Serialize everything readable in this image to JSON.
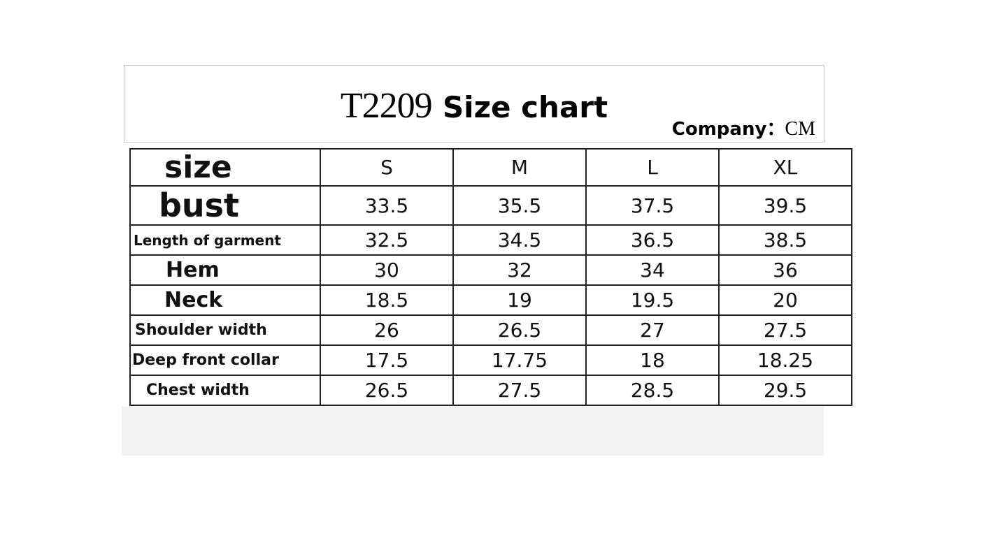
{
  "header": {
    "code": "T2209",
    "title": "Size chart",
    "company_label": "Company：",
    "unit": "CM"
  },
  "table": {
    "columns": [
      "size",
      "S",
      "M",
      "L",
      "XL"
    ],
    "rows": [
      {
        "label": "bust",
        "values": [
          "33.5",
          "35.5",
          "37.5",
          "39.5"
        ]
      },
      {
        "label": "Length of garment",
        "values": [
          "32.5",
          "34.5",
          "36.5",
          "38.5"
        ]
      },
      {
        "label": "Hem",
        "values": [
          "30",
          "32",
          "34",
          "36"
        ]
      },
      {
        "label": "Neck",
        "values": [
          "18.5",
          "19",
          "19.5",
          "20"
        ]
      },
      {
        "label": "Shoulder width",
        "values": [
          "26",
          "26.5",
          "27",
          "27.5"
        ]
      },
      {
        "label": "Deep front collar",
        "values": [
          "17.5",
          "17.75",
          "18",
          "18.25"
        ]
      },
      {
        "label": "Chest width",
        "values": [
          "26.5",
          "27.5",
          "28.5",
          "29.5"
        ]
      }
    ]
  }
}
